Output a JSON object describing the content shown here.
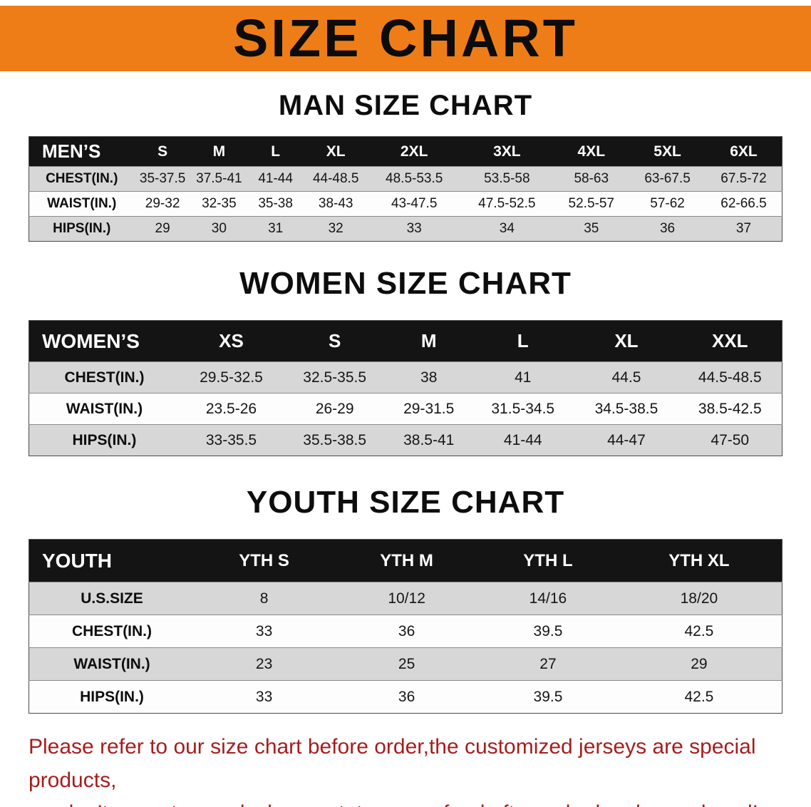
{
  "colors": {
    "banner_bg": "#ef7d17",
    "header_bg": "#141414",
    "stripe_bg": "#d7d7d7",
    "row_bg": "#fdfdfd",
    "disclaimer_color": "#a61e1e"
  },
  "banner": {
    "title": "SIZE CHART"
  },
  "men": {
    "heading": "MAN SIZE CHART",
    "table": {
      "header": [
        "MEN’S",
        "S",
        "M",
        "L",
        "XL",
        "2XL",
        "3XL",
        "4XL",
        "5XL",
        "6XL"
      ],
      "rows": [
        {
          "label": "CHEST(IN.)",
          "values": [
            "35-37.5",
            "37.5-41",
            "41-44",
            "44-48.5",
            "48.5-53.5",
            "53.5-58",
            "58-63",
            "63-67.5",
            "67.5-72"
          ]
        },
        {
          "label": "WAIST(IN.)",
          "values": [
            "29-32",
            "32-35",
            "35-38",
            "38-43",
            "43-47.5",
            "47.5-52.5",
            "52.5-57",
            "57-62",
            "62-66.5"
          ]
        },
        {
          "label": "HIPS(IN.)",
          "values": [
            "29",
            "30",
            "31",
            "32",
            "33",
            "34",
            "35",
            "36",
            "37"
          ]
        }
      ]
    }
  },
  "women": {
    "heading": "WOMEN SIZE CHART",
    "table": {
      "header": [
        "WOMEN’S",
        "XS",
        "S",
        "M",
        "L",
        "XL",
        "XXL"
      ],
      "rows": [
        {
          "label": "CHEST(IN.)",
          "values": [
            "29.5-32.5",
            "32.5-35.5",
            "38",
            "41",
            "44.5",
            "44.5-48.5"
          ]
        },
        {
          "label": "WAIST(IN.)",
          "values": [
            "23.5-26",
            "26-29",
            "29-31.5",
            "31.5-34.5",
            "34.5-38.5",
            "38.5-42.5"
          ]
        },
        {
          "label": "HIPS(IN.)",
          "values": [
            "33-35.5",
            "35.5-38.5",
            "38.5-41",
            "41-44",
            "44-47",
            "47-50"
          ]
        }
      ]
    }
  },
  "youth": {
    "heading": "YOUTH SIZE CHART",
    "table": {
      "header": [
        "YOUTH",
        "YTH S",
        "YTH M",
        "YTH L",
        "YTH XL"
      ],
      "rows": [
        {
          "label": "U.S.SIZE",
          "values": [
            "8",
            "10/12",
            "14/16",
            "18/20"
          ]
        },
        {
          "label": "CHEST(IN.)",
          "values": [
            "33",
            "36",
            "39.5",
            "42.5"
          ]
        },
        {
          "label": "WAIST(IN.)",
          "values": [
            "23",
            "25",
            "27",
            "29"
          ]
        },
        {
          "label": "HIPS(IN.)",
          "values": [
            "33",
            "36",
            "39.5",
            "42.5"
          ]
        }
      ]
    }
  },
  "disclaimer": {
    "line1": "Please refer to our size chart before order,the customized jerseys are special products,",
    "line2": "we don’t accept cancel, change, teturn or refund after order has been placed!"
  }
}
